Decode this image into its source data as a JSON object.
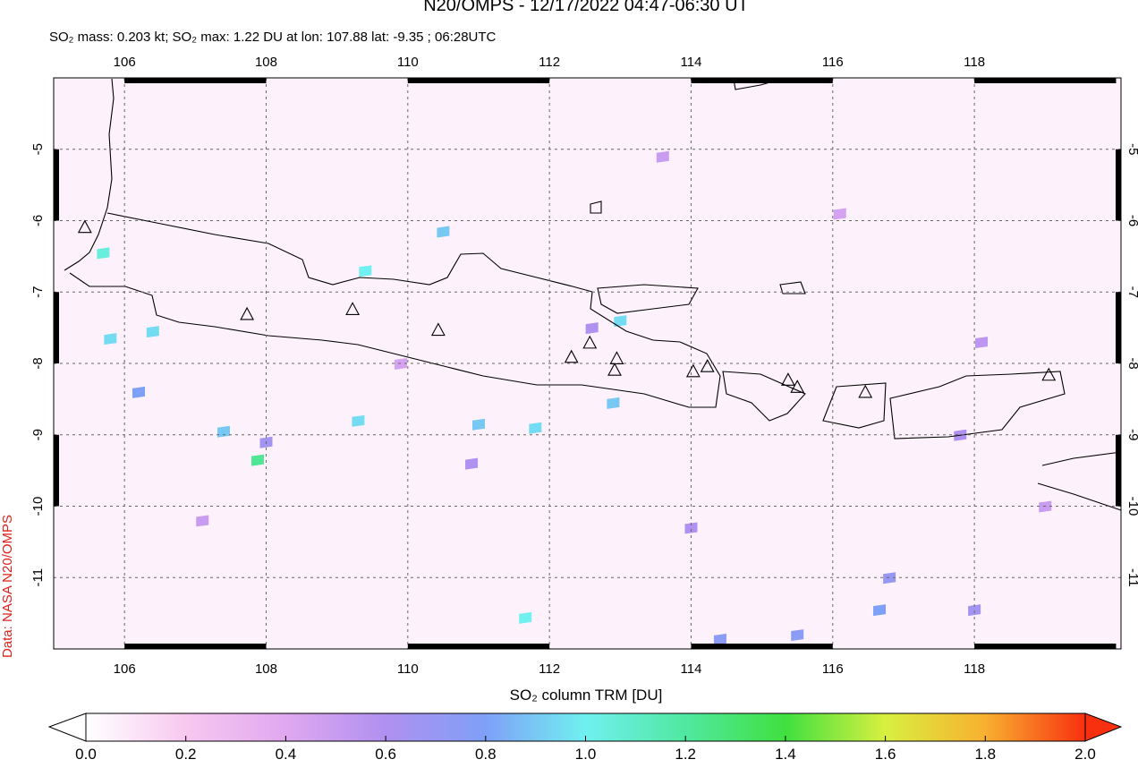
{
  "chart_data": {
    "type": "map",
    "title": "N20/OMPS - 12/17/2022 04:47-06:30 UT",
    "subtitle": "SO₂ mass: 0.203 kt; SO₂ max: 1.22 DU at lon: 107.88 lat: -9.35 ; 06:28UTC",
    "side_label": "Data: NASA N20/OMPS",
    "colorbar_label": "SO₂ column TRM [DU]",
    "xlim": [
      105,
      120.07
    ],
    "ylim": [
      -12,
      -4
    ],
    "xticks": [
      106,
      108,
      110,
      112,
      114,
      116,
      118
    ],
    "yticks": [
      -5,
      -6,
      -7,
      -8,
      -9,
      -10,
      -11
    ],
    "grid": true,
    "clim": [
      0,
      2
    ],
    "colormap": [
      "#ffffff",
      "#f8c8f0",
      "#e0a8f0",
      "#b090f0",
      "#7fa0f8",
      "#70f0f0",
      "#50e8a0",
      "#40e040",
      "#d8f040",
      "#f8b030",
      "#f83010"
    ],
    "cticks": [
      {
        "value": 0,
        "label": "0.0"
      },
      {
        "value": 0.2,
        "label": "0.2"
      },
      {
        "value": 0.4,
        "label": "0.4"
      },
      {
        "value": 0.6,
        "label": "0.6"
      },
      {
        "value": 0.8,
        "label": "0.8"
      },
      {
        "value": 1,
        "label": "1.0"
      },
      {
        "value": 1.2,
        "label": "1.2"
      },
      {
        "value": 1.4,
        "label": "1.4"
      },
      {
        "value": 1.6,
        "label": "1.6"
      },
      {
        "value": 1.8,
        "label": "1.8"
      },
      {
        "value": 2,
        "label": "2.0"
      }
    ],
    "pixels": {
      "lon": [
        107.88,
        105.7,
        109.4,
        110.5,
        113.0,
        112.9,
        111.0,
        111.8,
        109.3,
        107.4,
        105.8,
        106.4,
        106.2,
        111.66,
        114.41,
        115.5,
        116.66,
        116.8,
        118.0,
        110.9,
        114.0,
        117.8,
        118.1,
        112.6,
        107.1,
        108.0,
        109.9,
        113.6,
        116.1,
        119.0
      ],
      "lat": [
        -9.35,
        -6.45,
        -6.7,
        -6.15,
        -7.4,
        -8.55,
        -8.85,
        -8.9,
        -8.8,
        -8.95,
        -7.65,
        -7.55,
        -8.4,
        -11.56,
        -11.86,
        -11.8,
        -11.45,
        -11.0,
        -11.45,
        -9.4,
        -10.3,
        -9.0,
        -7.7,
        -7.5,
        -10.2,
        -9.1,
        -8.0,
        -5.1,
        -5.9,
        -10.0
      ],
      "values": [
        1.22,
        1.05,
        1.0,
        0.9,
        0.95,
        0.9,
        0.9,
        0.95,
        0.95,
        0.9,
        0.95,
        0.95,
        0.8,
        1.0,
        0.75,
        0.75,
        0.8,
        0.7,
        0.65,
        0.6,
        0.6,
        0.6,
        0.55,
        0.6,
        0.5,
        0.65,
        0.45,
        0.5,
        0.45,
        0.5
      ]
    },
    "volcanoes": {
      "lon": [
        105.44,
        107.73,
        109.22,
        110.43,
        112.31,
        112.57,
        112.95,
        112.92,
        114.03,
        114.23,
        115.37,
        115.5,
        116.46,
        119.05
      ],
      "lat": [
        -6.09,
        -7.31,
        -7.24,
        -7.53,
        -7.91,
        -7.71,
        -7.93,
        -8.09,
        -8.11,
        -8.04,
        -8.23,
        -8.33,
        -8.4,
        -8.16
      ]
    }
  }
}
